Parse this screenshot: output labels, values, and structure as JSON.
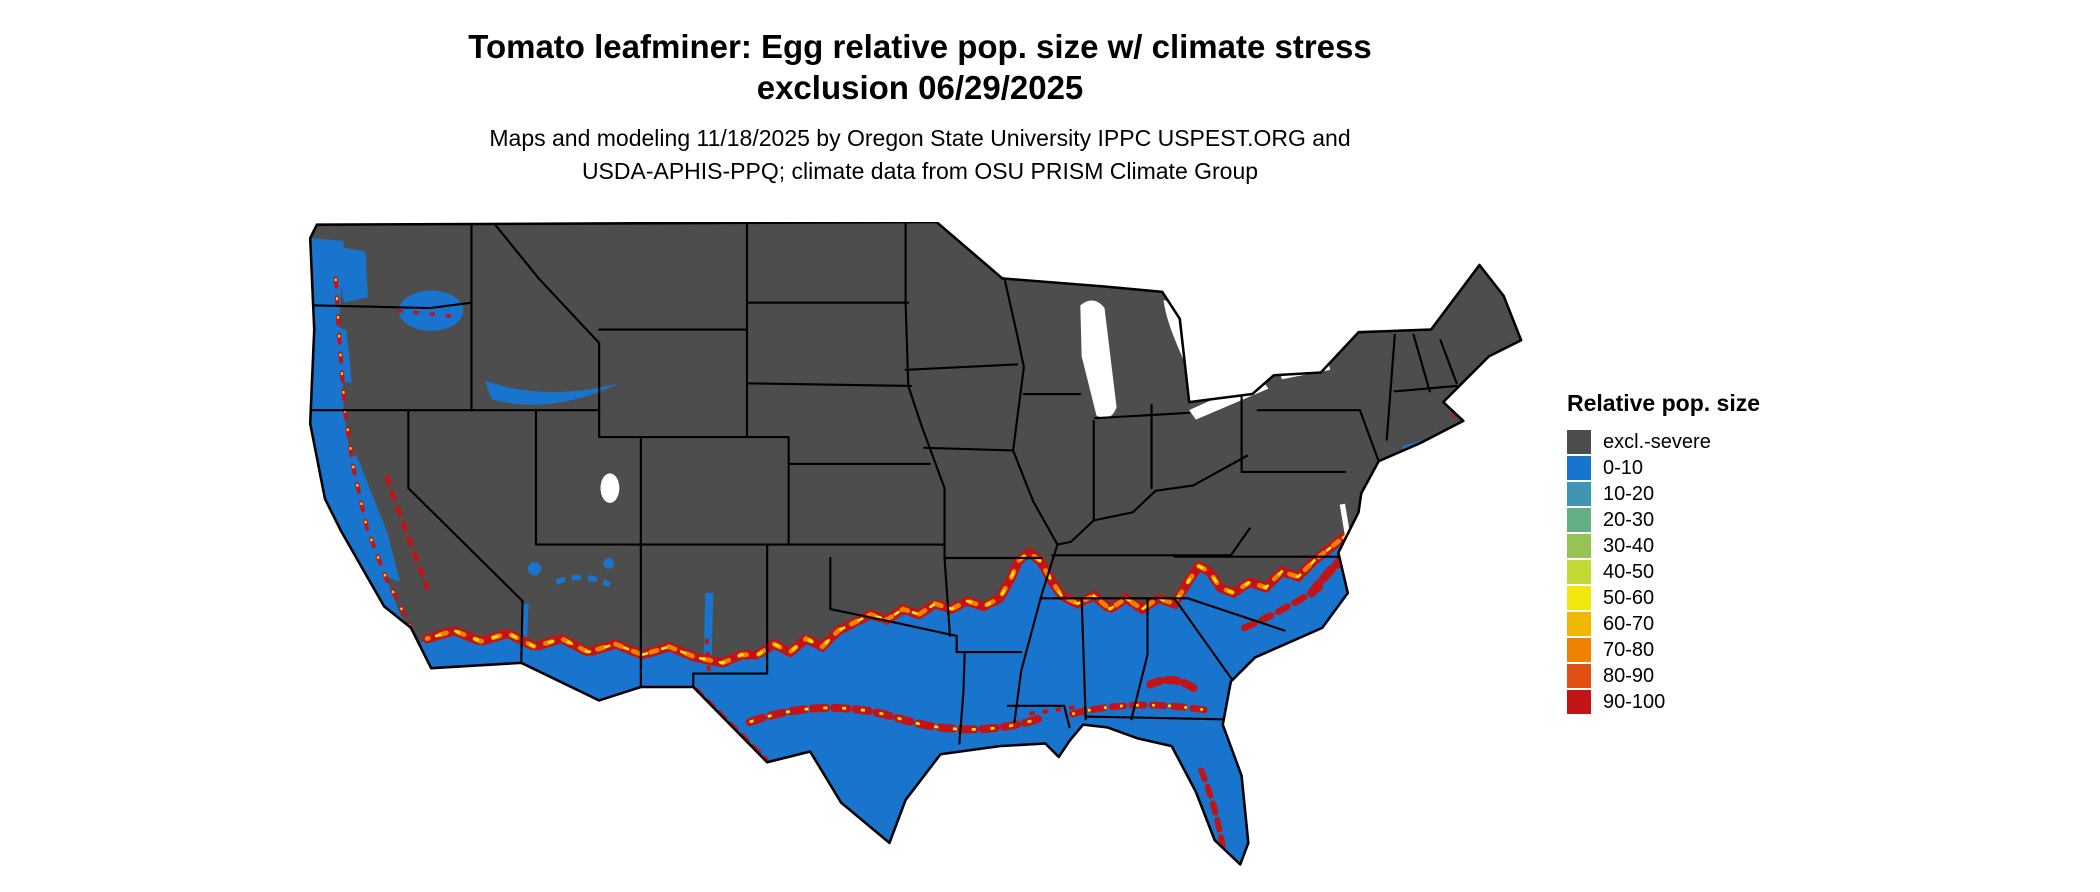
{
  "title": {
    "line1": "Tomato leafminer: Egg relative pop. size w/ climate stress",
    "line2": "exclusion 06/29/2025"
  },
  "subtitle": {
    "line1": "Maps and modeling 11/18/2025 by Oregon State University IPPC USPEST.ORG and",
    "line2": "USDA-APHIS-PPQ; climate data from OSU PRISM Climate Group"
  },
  "legend": {
    "title": "Relative pop. size",
    "items": [
      {
        "label": "excl.-severe",
        "color": "#4d4d4d"
      },
      {
        "label": "0-10",
        "color": "#1874cd"
      },
      {
        "label": "10-20",
        "color": "#3f96b4"
      },
      {
        "label": "20-30",
        "color": "#62ae85"
      },
      {
        "label": "30-40",
        "color": "#96c356"
      },
      {
        "label": "40-50",
        "color": "#c3d937"
      },
      {
        "label": "50-60",
        "color": "#f2e70c"
      },
      {
        "label": "60-70",
        "color": "#f2b705"
      },
      {
        "label": "70-80",
        "color": "#ee8200"
      },
      {
        "label": "80-90",
        "color": "#e04f15"
      },
      {
        "label": "90-100",
        "color": "#c21417"
      }
    ]
  },
  "map": {
    "colors": {
      "excluded": "#4d4d4d",
      "population_low": "#1874cd",
      "band_red": "#c21417",
      "band_orange": "#ee8200",
      "band_yellow": "#f2e70c",
      "state_border": "#000000",
      "water": "#ffffff"
    }
  }
}
